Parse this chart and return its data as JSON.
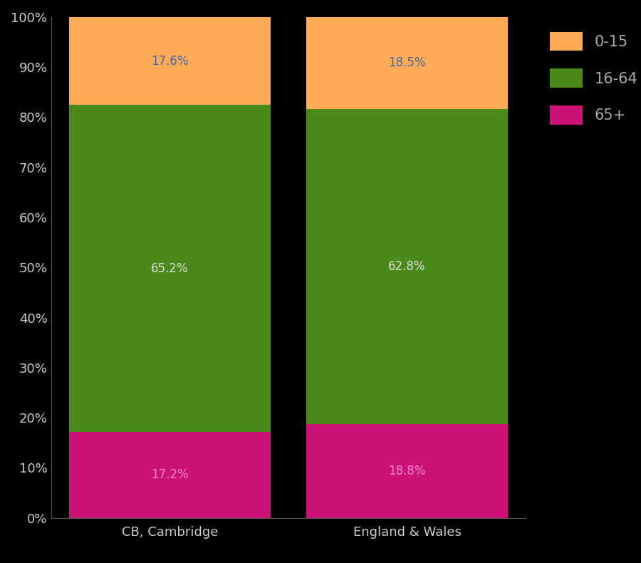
{
  "categories": [
    "CB, Cambridge",
    "England & Wales"
  ],
  "segments": {
    "65+": [
      17.2,
      18.8
    ],
    "16-64": [
      65.2,
      62.8
    ],
    "0-15": [
      17.6,
      18.5
    ]
  },
  "colors": {
    "0-15": "#FFAA55",
    "16-64": "#4A8A1A",
    "65+": "#CC1177"
  },
  "label_colors": {
    "0-15": "#4466AA",
    "16-64": "#DDDDDD",
    "65+": "#EE88CC"
  },
  "background_color": "#000000",
  "tick_label_color": "#CCCCCC",
  "legend_text_color": "#AAAAAA",
  "bar_width": 0.85,
  "ylim": [
    0,
    100
  ],
  "yticks": [
    0,
    10,
    20,
    30,
    40,
    50,
    60,
    70,
    80,
    90,
    100
  ],
  "ytick_labels": [
    "0%",
    "10%",
    "20%",
    "30%",
    "40%",
    "50%",
    "60%",
    "70%",
    "80%",
    "90%",
    "100%"
  ],
  "legend_labels": [
    "0-15",
    "16-64",
    "65+"
  ],
  "label_fontsize": 12,
  "tick_fontsize": 13,
  "figsize": [
    9.0,
    7.9
  ],
  "dpi": 100
}
